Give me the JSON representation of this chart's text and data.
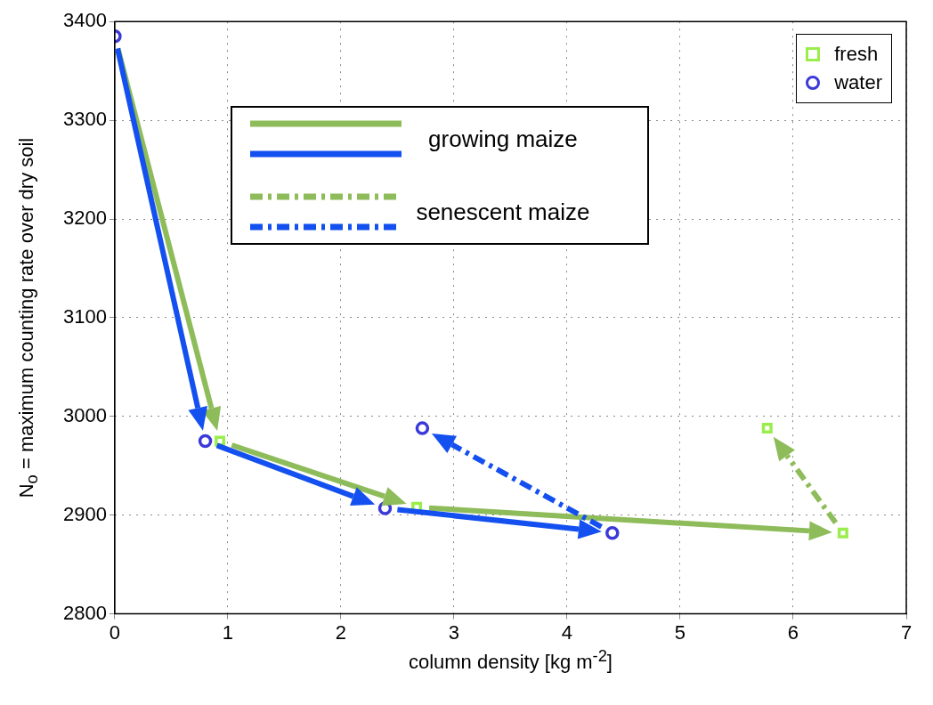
{
  "chart_data": {
    "type": "scatter",
    "xlabel": "column density [kg m$^{-2}$]",
    "ylabel": "N$_{o}$ = maximum counting rate over dry soil",
    "xlim": [
      0,
      7
    ],
    "xticks": [
      0,
      1,
      2,
      3,
      4,
      5,
      6,
      7
    ],
    "ylim": [
      2800,
      3400
    ],
    "yticks": [
      2800,
      2900,
      3000,
      3100,
      3200,
      3300,
      3400
    ],
    "grid": true,
    "legend": "top right",
    "annotations": [
      "growing maize",
      "senescent maize"
    ],
    "series": [
      {
        "name": "fresh",
        "color": "#9aee4c",
        "marker": "square",
        "x": [
          null,
          0.93,
          2.67,
          6.44,
          5.77
        ],
        "values": [
          null,
          2975,
          2908,
          2882,
          2988
        ]
      },
      {
        "name": "water",
        "color": "#3a3ad8",
        "marker": "circle",
        "x": [
          0,
          0.8,
          2.39,
          4.4,
          2.72
        ],
        "values": [
          3385,
          2975,
          2907,
          2882,
          2988
        ]
      }
    ]
  }
}
